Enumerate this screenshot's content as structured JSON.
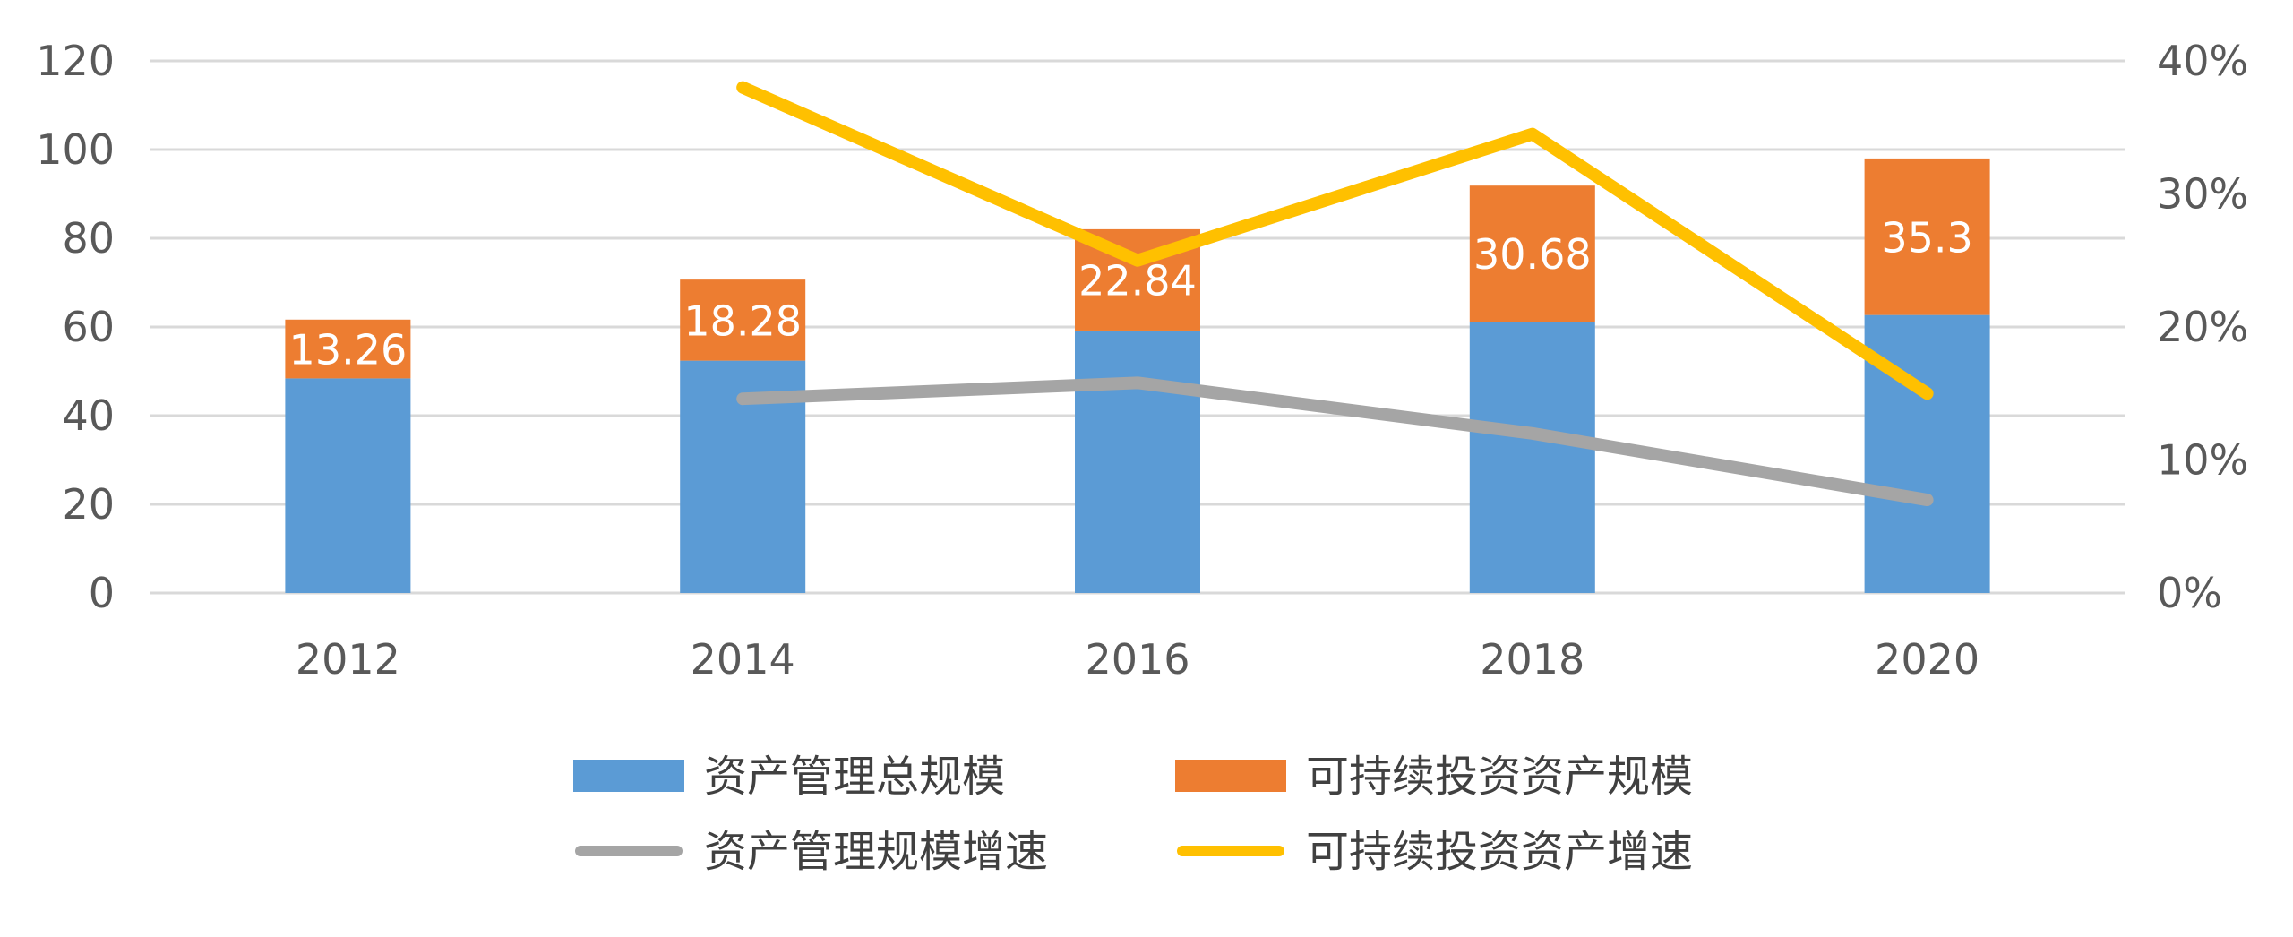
{
  "chart_data": {
    "type": "bar",
    "stacked": true,
    "categories": [
      "2012",
      "2014",
      "2016",
      "2018",
      "2020"
    ],
    "series": [
      {
        "name": "资产管理总规模",
        "kind": "bar",
        "axis": "left",
        "color": "#5B9BD5",
        "values": [
          48.4,
          52.4,
          59.2,
          61.2,
          62.7
        ]
      },
      {
        "name": "可持续投资资产规模",
        "kind": "bar",
        "axis": "left",
        "color": "#ED7D31",
        "values": [
          13.26,
          18.28,
          22.84,
          30.68,
          35.3
        ],
        "labels": [
          "13.26",
          "18.28",
          "22.84",
          "30.68",
          "35.3"
        ]
      },
      {
        "name": "资产管理规模增速",
        "kind": "line",
        "axis": "right",
        "color": "#A5A5A5",
        "values": [
          null,
          14.6,
          15.8,
          12.0,
          7.0
        ]
      },
      {
        "name": "可持续投资资产增速",
        "kind": "line",
        "axis": "right",
        "color": "#FFC000",
        "values": [
          null,
          38.0,
          25.0,
          34.5,
          15.0
        ]
      }
    ],
    "yaxis_left": {
      "min": 0,
      "max": 120,
      "ticks": [
        "0",
        "20",
        "40",
        "60",
        "80",
        "100",
        "120"
      ]
    },
    "yaxis_right": {
      "min": 0,
      "max": 40,
      "ticks": [
        "0%",
        "10%",
        "20%",
        "30%",
        "40%"
      ]
    },
    "grid": true,
    "legend_position": "bottom"
  }
}
